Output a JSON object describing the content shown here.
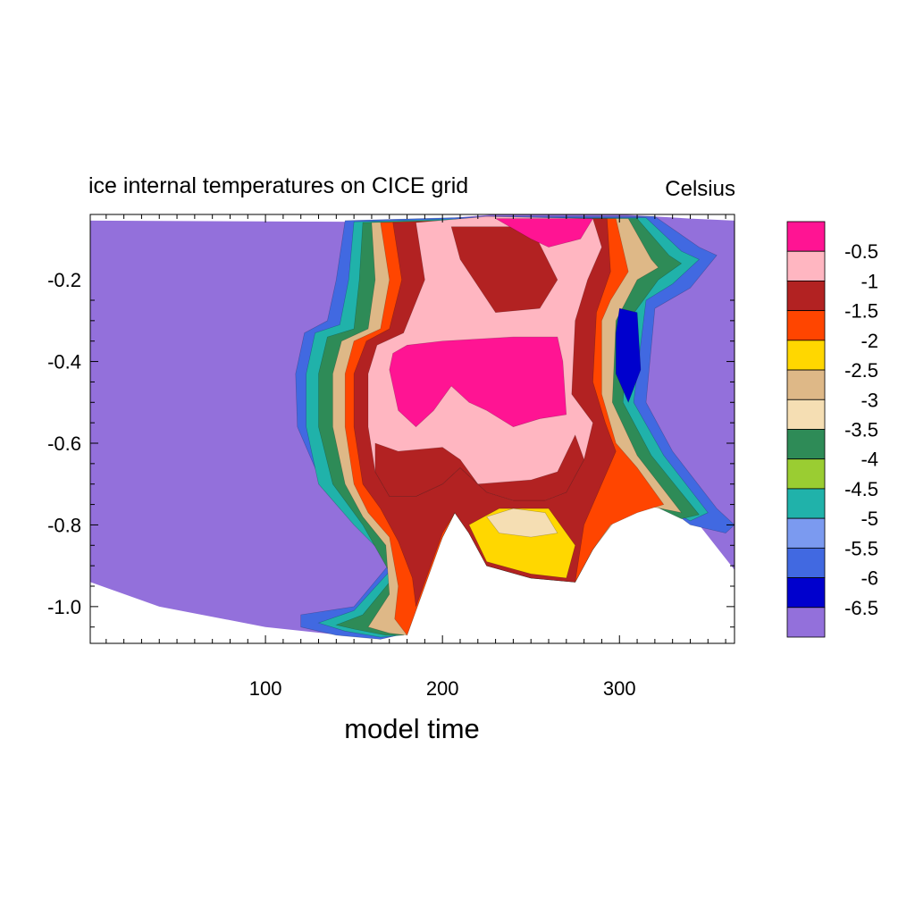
{
  "chart_data": {
    "type": "heatmap",
    "title": "ice internal temperatures on CICE grid",
    "units": "Celsius",
    "xlabel": "model time",
    "ylabel": "",
    "xlim": [
      1,
      365
    ],
    "ylim": [
      -1.09,
      -0.04
    ],
    "x_ticks": [
      {
        "value": 100,
        "label": "100"
      },
      {
        "value": 200,
        "label": "200"
      },
      {
        "value": 300,
        "label": "300"
      }
    ],
    "y_ticks": [
      {
        "value": -0.2,
        "label": "-0.2"
      },
      {
        "value": -0.4,
        "label": "-0.4"
      },
      {
        "value": -0.6,
        "label": "-0.6"
      },
      {
        "value": -0.8,
        "label": "-0.8"
      },
      {
        "value": -1.0,
        "label": "-1.0"
      }
    ],
    "colorbar": {
      "levels": [
        "-0.5",
        "-1",
        "-1.5",
        "-2",
        "-2.5",
        "-3",
        "-3.5",
        "-4",
        "-4.5",
        "-5",
        "-5.5",
        "-6",
        "-6.5"
      ],
      "colors": [
        "#ff1493",
        "#ffb6c1",
        "#b22222",
        "#ff4500",
        "#ffd700",
        "#deb887",
        "#f5deb3",
        "#2e8b57",
        "#9acd32",
        "#20b2aa",
        "#7b9af0",
        "#4169e1",
        "#0000cd",
        "#9370db"
      ]
    },
    "ice_top": [
      [
        1,
        -0.055
      ],
      [
        150,
        -0.058
      ],
      [
        200,
        -0.05
      ],
      [
        230,
        -0.04
      ],
      [
        300,
        -0.04
      ],
      [
        340,
        -0.05
      ],
      [
        365,
        -0.055
      ]
    ],
    "ice_bottom": [
      [
        1,
        -0.94
      ],
      [
        40,
        -1.0
      ],
      [
        100,
        -1.05
      ],
      [
        165,
        -1.08
      ],
      [
        175,
        -1.07
      ],
      [
        200,
        -0.83
      ],
      [
        207,
        -0.77
      ],
      [
        215,
        -0.82
      ],
      [
        225,
        -0.9
      ],
      [
        250,
        -0.93
      ],
      [
        275,
        -0.94
      ],
      [
        285,
        -0.86
      ],
      [
        300,
        -0.76
      ],
      [
        320,
        -0.73
      ],
      [
        345,
        -0.8
      ],
      [
        365,
        -0.91
      ]
    ],
    "regions": [
      {
        "level": "-6",
        "polygon": [
          [
            145,
            -0.055
          ],
          [
            230,
            -0.045
          ],
          [
            320,
            -0.045
          ],
          [
            345,
            -0.12
          ],
          [
            355,
            -0.14
          ],
          [
            340,
            -0.22
          ],
          [
            320,
            -0.27
          ],
          [
            315,
            -0.5
          ],
          [
            330,
            -0.62
          ],
          [
            355,
            -0.76
          ],
          [
            365,
            -0.8
          ],
          [
            360,
            -0.82
          ],
          [
            340,
            -0.8
          ],
          [
            320,
            -0.735
          ],
          [
            300,
            -0.76
          ],
          [
            285,
            -0.86
          ],
          [
            275,
            -0.94
          ],
          [
            250,
            -0.93
          ],
          [
            225,
            -0.9
          ],
          [
            215,
            -0.82
          ],
          [
            207,
            -0.77
          ],
          [
            200,
            -0.83
          ],
          [
            175,
            -1.07
          ],
          [
            165,
            -1.08
          ],
          [
            140,
            -1.07
          ],
          [
            120,
            -1.05
          ],
          [
            120,
            -1.02
          ],
          [
            150,
            -1.0
          ],
          [
            175,
            -0.87
          ],
          [
            150,
            -0.78
          ],
          [
            130,
            -0.68
          ],
          [
            118,
            -0.56
          ],
          [
            117,
            -0.43
          ],
          [
            122,
            -0.33
          ],
          [
            135,
            -0.3
          ],
          [
            140,
            -0.2
          ]
        ]
      },
      {
        "level": "-5",
        "polygon": [
          [
            150,
            -0.058
          ],
          [
            230,
            -0.048
          ],
          [
            315,
            -0.048
          ],
          [
            335,
            -0.13
          ],
          [
            345,
            -0.15
          ],
          [
            330,
            -0.21
          ],
          [
            315,
            -0.25
          ],
          [
            308,
            -0.5
          ],
          [
            325,
            -0.63
          ],
          [
            350,
            -0.77
          ],
          [
            340,
            -0.79
          ],
          [
            320,
            -0.745
          ],
          [
            300,
            -0.765
          ],
          [
            285,
            -0.86
          ],
          [
            275,
            -0.94
          ],
          [
            250,
            -0.93
          ],
          [
            225,
            -0.9
          ],
          [
            215,
            -0.82
          ],
          [
            207,
            -0.77
          ],
          [
            200,
            -0.83
          ],
          [
            177,
            -1.07
          ],
          [
            165,
            -1.075
          ],
          [
            145,
            -1.06
          ],
          [
            130,
            -1.04
          ],
          [
            150,
            -1.01
          ],
          [
            173,
            -0.9
          ],
          [
            150,
            -0.8
          ],
          [
            130,
            -0.7
          ],
          [
            123,
            -0.56
          ],
          [
            123,
            -0.43
          ],
          [
            128,
            -0.33
          ],
          [
            142,
            -0.31
          ],
          [
            147,
            -0.2
          ]
        ]
      },
      {
        "level": "-4",
        "polygon": [
          [
            155,
            -0.06
          ],
          [
            235,
            -0.05
          ],
          [
            310,
            -0.05
          ],
          [
            328,
            -0.14
          ],
          [
            335,
            -0.16
          ],
          [
            322,
            -0.2
          ],
          [
            305,
            -0.3
          ],
          [
            302,
            -0.5
          ],
          [
            318,
            -0.63
          ],
          [
            345,
            -0.775
          ],
          [
            335,
            -0.785
          ],
          [
            318,
            -0.75
          ],
          [
            300,
            -0.77
          ],
          [
            285,
            -0.86
          ],
          [
            275,
            -0.94
          ],
          [
            250,
            -0.93
          ],
          [
            225,
            -0.9
          ],
          [
            215,
            -0.82
          ],
          [
            207,
            -0.77
          ],
          [
            200,
            -0.83
          ],
          [
            178,
            -1.07
          ],
          [
            168,
            -1.07
          ],
          [
            150,
            -1.055
          ],
          [
            140,
            -1.045
          ],
          [
            155,
            -1.02
          ],
          [
            172,
            -0.93
          ],
          [
            155,
            -0.8
          ],
          [
            138,
            -0.7
          ],
          [
            130,
            -0.56
          ],
          [
            130,
            -0.43
          ],
          [
            135,
            -0.34
          ],
          [
            150,
            -0.32
          ],
          [
            153,
            -0.2
          ]
        ]
      },
      {
        "level": "-3",
        "polygon": [
          [
            160,
            -0.06
          ],
          [
            235,
            -0.05
          ],
          [
            305,
            -0.05
          ],
          [
            318,
            -0.15
          ],
          [
            322,
            -0.17
          ],
          [
            310,
            -0.2
          ],
          [
            298,
            -0.3
          ],
          [
            296,
            -0.5
          ],
          [
            310,
            -0.63
          ],
          [
            335,
            -0.77
          ],
          [
            318,
            -0.755
          ],
          [
            300,
            -0.775
          ],
          [
            285,
            -0.86
          ],
          [
            275,
            -0.94
          ],
          [
            250,
            -0.93
          ],
          [
            225,
            -0.9
          ],
          [
            215,
            -0.82
          ],
          [
            207,
            -0.77
          ],
          [
            200,
            -0.83
          ],
          [
            180,
            -1.07
          ],
          [
            170,
            -1.065
          ],
          [
            158,
            -1.05
          ],
          [
            170,
            -0.97
          ],
          [
            168,
            -0.85
          ],
          [
            155,
            -0.78
          ],
          [
            145,
            -0.7
          ],
          [
            138,
            -0.56
          ],
          [
            138,
            -0.43
          ],
          [
            143,
            -0.35
          ],
          [
            158,
            -0.32
          ],
          [
            162,
            -0.2
          ]
        ]
      },
      {
        "level": "-2",
        "polygon": [
          [
            165,
            -0.06
          ],
          [
            240,
            -0.05
          ],
          [
            298,
            -0.05
          ],
          [
            305,
            -0.18
          ],
          [
            295,
            -0.25
          ],
          [
            290,
            -0.3
          ],
          [
            290,
            -0.48
          ],
          [
            298,
            -0.6
          ],
          [
            310,
            -0.66
          ],
          [
            325,
            -0.75
          ],
          [
            310,
            -0.77
          ],
          [
            295,
            -0.8
          ],
          [
            285,
            -0.86
          ],
          [
            275,
            -0.94
          ],
          [
            250,
            -0.93
          ],
          [
            225,
            -0.9
          ],
          [
            215,
            -0.82
          ],
          [
            207,
            -0.77
          ],
          [
            200,
            -0.83
          ],
          [
            180,
            -1.07
          ],
          [
            173,
            -1.03
          ],
          [
            175,
            -0.95
          ],
          [
            170,
            -0.83
          ],
          [
            158,
            -0.77
          ],
          [
            150,
            -0.7
          ],
          [
            145,
            -0.56
          ],
          [
            145,
            -0.43
          ],
          [
            150,
            -0.35
          ],
          [
            165,
            -0.32
          ],
          [
            170,
            -0.2
          ]
        ]
      },
      {
        "level": "-1.5",
        "polygon": [
          [
            172,
            -0.06
          ],
          [
            245,
            -0.05
          ],
          [
            293,
            -0.05
          ],
          [
            295,
            -0.18
          ],
          [
            287,
            -0.28
          ],
          [
            285,
            -0.45
          ],
          [
            292,
            -0.55
          ],
          [
            298,
            -0.62
          ],
          [
            290,
            -0.7
          ],
          [
            280,
            -0.8
          ],
          [
            275,
            -0.94
          ],
          [
            250,
            -0.93
          ],
          [
            225,
            -0.9
          ],
          [
            215,
            -0.82
          ],
          [
            207,
            -0.77
          ],
          [
            200,
            -0.82
          ],
          [
            185,
            -1.0
          ],
          [
            183,
            -0.93
          ],
          [
            175,
            -0.84
          ],
          [
            165,
            -0.76
          ],
          [
            155,
            -0.7
          ],
          [
            150,
            -0.56
          ],
          [
            150,
            -0.43
          ],
          [
            157,
            -0.35
          ],
          [
            170,
            -0.32
          ],
          [
            177,
            -0.2
          ]
        ]
      },
      {
        "level": "-2.5",
        "polygon": [
          [
            215,
            -0.8
          ],
          [
            232,
            -0.76
          ],
          [
            260,
            -0.76
          ],
          [
            275,
            -0.85
          ],
          [
            270,
            -0.93
          ],
          [
            250,
            -0.92
          ],
          [
            225,
            -0.89
          ]
        ]
      },
      {
        "level": "-3.5",
        "polygon": [
          [
            225,
            -0.78
          ],
          [
            240,
            -0.76
          ],
          [
            258,
            -0.77
          ],
          [
            265,
            -0.82
          ],
          [
            250,
            -0.83
          ],
          [
            232,
            -0.82
          ]
        ]
      },
      {
        "level": "-1",
        "polygon": [
          [
            185,
            -0.06
          ],
          [
            225,
            -0.045
          ],
          [
            285,
            -0.05
          ],
          [
            290,
            -0.12
          ],
          [
            282,
            -0.2
          ],
          [
            275,
            -0.3
          ],
          [
            273,
            -0.48
          ],
          [
            285,
            -0.55
          ],
          [
            280,
            -0.64
          ],
          [
            270,
            -0.72
          ],
          [
            258,
            -0.74
          ],
          [
            240,
            -0.74
          ],
          [
            225,
            -0.72
          ],
          [
            210,
            -0.66
          ],
          [
            200,
            -0.7
          ],
          [
            185,
            -0.73
          ],
          [
            170,
            -0.73
          ],
          [
            162,
            -0.67
          ],
          [
            158,
            -0.56
          ],
          [
            158,
            -0.43
          ],
          [
            163,
            -0.36
          ],
          [
            178,
            -0.33
          ],
          [
            190,
            -0.2
          ]
        ]
      },
      {
        "level": "-1.5",
        "polygon": [
          [
            205,
            -0.07
          ],
          [
            250,
            -0.07
          ],
          [
            265,
            -0.2
          ],
          [
            255,
            -0.27
          ],
          [
            230,
            -0.28
          ],
          [
            210,
            -0.15
          ]
        ]
      },
      {
        "level": "-1.5",
        "polygon": [
          [
            162,
            -0.6
          ],
          [
            175,
            -0.62
          ],
          [
            200,
            -0.61
          ],
          [
            210,
            -0.64
          ],
          [
            220,
            -0.7
          ],
          [
            250,
            -0.69
          ],
          [
            265,
            -0.67
          ],
          [
            275,
            -0.58
          ],
          [
            280,
            -0.64
          ],
          [
            270,
            -0.72
          ],
          [
            258,
            -0.74
          ],
          [
            240,
            -0.74
          ],
          [
            225,
            -0.72
          ],
          [
            210,
            -0.66
          ],
          [
            200,
            -0.7
          ],
          [
            185,
            -0.73
          ],
          [
            170,
            -0.73
          ],
          [
            162,
            -0.67
          ]
        ]
      },
      {
        "level": "-0.5",
        "polygon": [
          [
            230,
            -0.05
          ],
          [
            285,
            -0.05
          ],
          [
            278,
            -0.1
          ],
          [
            260,
            -0.12
          ],
          [
            250,
            -0.1
          ]
        ]
      },
      {
        "level": "-0.5",
        "polygon": [
          [
            170,
            -0.42
          ],
          [
            172,
            -0.38
          ],
          [
            180,
            -0.36
          ],
          [
            200,
            -0.35
          ],
          [
            240,
            -0.34
          ],
          [
            265,
            -0.34
          ],
          [
            268,
            -0.4
          ],
          [
            270,
            -0.53
          ],
          [
            255,
            -0.54
          ],
          [
            240,
            -0.56
          ],
          [
            225,
            -0.52
          ],
          [
            215,
            -0.5
          ],
          [
            205,
            -0.46
          ],
          [
            195,
            -0.52
          ],
          [
            185,
            -0.56
          ],
          [
            175,
            -0.52
          ]
        ]
      },
      {
        "level": "-6.5",
        "polygon": [
          [
            300,
            -0.27
          ],
          [
            310,
            -0.28
          ],
          [
            312,
            -0.42
          ],
          [
            305,
            -0.5
          ],
          [
            298,
            -0.43
          ],
          [
            298,
            -0.33
          ]
        ]
      }
    ]
  }
}
